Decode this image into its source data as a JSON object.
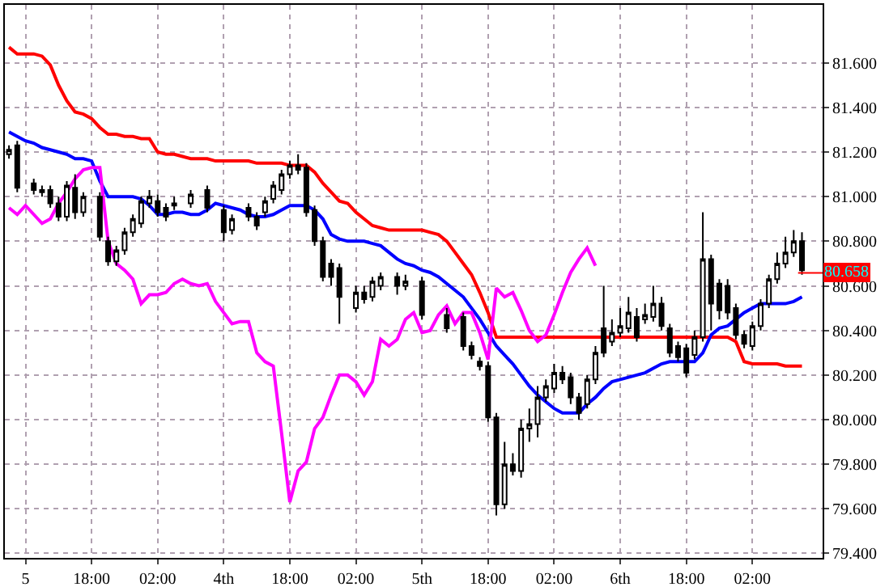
{
  "chart_data": {
    "type": "candlestick",
    "categories": [
      null,
      null,
      "5",
      null,
      null,
      null,
      null,
      null,
      null,
      null,
      "18:00",
      null,
      null,
      null,
      null,
      null,
      null,
      null,
      "02:00",
      null,
      null,
      null,
      null,
      null,
      null,
      null,
      "4th",
      null,
      null,
      null,
      null,
      null,
      null,
      null,
      "18:00",
      null,
      null,
      null,
      null,
      null,
      null,
      null,
      "02:00",
      null,
      null,
      null,
      null,
      null,
      null,
      null,
      "5th",
      null,
      null,
      null,
      null,
      null,
      null,
      null,
      "18:00",
      null,
      null,
      null,
      null,
      null,
      null,
      null,
      "02:00",
      null,
      null,
      null,
      null,
      null,
      null,
      null,
      "6th",
      null,
      null,
      null,
      null,
      null,
      null,
      null,
      "18:00",
      null,
      null,
      null,
      null,
      null,
      null,
      null,
      "02:00",
      null,
      null,
      null,
      null,
      null,
      null
    ],
    "ohlc": [
      [
        81.19,
        81.23,
        81.17,
        81.21
      ],
      [
        81.23,
        81.25,
        81.02,
        81.04
      ],
      null,
      [
        81.06,
        81.08,
        81.01,
        81.03
      ],
      [
        81.03,
        81.05,
        81.0,
        81.02
      ],
      [
        81.03,
        81.05,
        80.95,
        80.97
      ],
      [
        80.97,
        81.0,
        80.89,
        80.91
      ],
      [
        80.91,
        81.07,
        80.89,
        81.05
      ],
      [
        81.04,
        81.1,
        80.9,
        80.93
      ],
      [
        80.93,
        81.02,
        80.91,
        81.0
      ],
      null,
      [
        81.0,
        81.02,
        80.8,
        80.82
      ],
      [
        80.8,
        80.82,
        80.69,
        80.71
      ],
      [
        80.71,
        80.78,
        80.69,
        80.76
      ],
      [
        80.76,
        80.86,
        80.74,
        80.84
      ],
      [
        80.84,
        80.92,
        80.82,
        80.9
      ],
      [
        80.88,
        81.0,
        80.86,
        80.98
      ],
      [
        80.97,
        81.03,
        80.95,
        81.0
      ],
      [
        80.98,
        81.01,
        80.91,
        80.93
      ],
      [
        80.95,
        80.97,
        80.89,
        80.91
      ],
      [
        80.96,
        81.0,
        80.94,
        80.97
      ],
      null,
      [
        80.97,
        81.03,
        80.95,
        81.01
      ],
      null,
      [
        81.03,
        81.05,
        80.93,
        80.95
      ],
      null,
      [
        80.94,
        80.96,
        80.8,
        80.84
      ],
      [
        80.85,
        80.92,
        80.83,
        80.9
      ],
      null,
      [
        80.95,
        80.97,
        80.89,
        80.91
      ],
      [
        80.91,
        80.93,
        80.85,
        80.87
      ],
      [
        80.93,
        81.0,
        80.91,
        80.98
      ],
      [
        80.99,
        81.07,
        80.97,
        81.05
      ],
      [
        81.03,
        81.12,
        81.01,
        81.1
      ],
      [
        81.1,
        81.16,
        81.08,
        81.14
      ],
      [
        81.14,
        81.19,
        81.1,
        81.12
      ],
      [
        81.13,
        81.15,
        80.91,
        80.93
      ],
      [
        80.94,
        80.96,
        80.78,
        80.8
      ],
      [
        80.8,
        80.82,
        80.62,
        80.64
      ],
      [
        80.7,
        80.72,
        80.6,
        80.64
      ],
      [
        80.68,
        80.7,
        80.43,
        80.55
      ],
      null,
      [
        80.5,
        80.6,
        80.48,
        80.57
      ],
      [
        80.57,
        80.6,
        80.52,
        80.54
      ],
      [
        80.55,
        80.64,
        80.53,
        80.62
      ],
      [
        80.6,
        80.66,
        80.58,
        80.64
      ],
      null,
      [
        80.64,
        80.66,
        80.56,
        80.6
      ],
      [
        80.6,
        80.65,
        80.58,
        80.62
      ],
      null,
      [
        80.62,
        80.64,
        80.45,
        80.47
      ],
      null,
      null,
      [
        80.47,
        80.5,
        80.39,
        80.41
      ],
      null,
      [
        80.46,
        80.48,
        80.31,
        80.33
      ],
      [
        80.33,
        80.35,
        80.27,
        80.29
      ],
      [
        80.26,
        80.28,
        80.22,
        80.24
      ],
      [
        80.24,
        80.26,
        79.99,
        80.01
      ],
      [
        80.01,
        80.03,
        79.57,
        79.62
      ],
      [
        79.62,
        79.9,
        79.6,
        79.8
      ],
      [
        79.8,
        79.85,
        79.75,
        79.77
      ],
      [
        79.77,
        80.0,
        79.74,
        79.96
      ],
      [
        79.96,
        80.05,
        79.9,
        79.98
      ],
      [
        79.98,
        80.15,
        79.92,
        80.1
      ],
      [
        80.1,
        80.18,
        80.08,
        80.15
      ],
      [
        80.14,
        80.25,
        80.12,
        80.21
      ],
      [
        80.21,
        80.24,
        80.16,
        80.18
      ],
      [
        80.19,
        80.21,
        80.07,
        80.1
      ],
      [
        80.1,
        80.12,
        80.0,
        80.03
      ],
      [
        80.07,
        80.2,
        80.05,
        80.18
      ],
      [
        80.18,
        80.33,
        80.16,
        80.3
      ],
      [
        80.41,
        80.6,
        80.28,
        80.3
      ],
      [
        80.35,
        80.45,
        80.33,
        80.39
      ],
      [
        80.39,
        80.5,
        80.37,
        80.42
      ],
      [
        80.41,
        80.55,
        80.39,
        80.48
      ],
      [
        80.46,
        80.5,
        80.35,
        80.37
      ],
      [
        80.45,
        80.52,
        80.43,
        80.47
      ],
      [
        80.46,
        80.6,
        80.44,
        80.52
      ],
      [
        80.52,
        80.55,
        80.4,
        80.42
      ],
      [
        80.41,
        80.43,
        80.28,
        80.3
      ],
      [
        80.33,
        80.35,
        80.26,
        80.28
      ],
      [
        80.32,
        80.34,
        80.19,
        80.21
      ],
      [
        80.29,
        80.4,
        80.27,
        80.37
      ],
      [
        80.37,
        80.93,
        80.35,
        80.72
      ],
      [
        80.72,
        80.74,
        80.4,
        80.52
      ],
      [
        80.61,
        80.63,
        80.45,
        80.49
      ],
      [
        80.6,
        80.63,
        80.45,
        80.48
      ],
      [
        80.5,
        80.52,
        80.36,
        80.38
      ],
      [
        80.38,
        80.4,
        80.32,
        80.34
      ],
      [
        80.33,
        80.44,
        80.31,
        80.42
      ],
      [
        80.42,
        80.54,
        80.4,
        80.52
      ],
      [
        80.52,
        80.65,
        80.5,
        80.63
      ],
      [
        80.63,
        80.75,
        80.61,
        80.7
      ],
      [
        80.7,
        80.82,
        80.68,
        80.75
      ],
      [
        80.75,
        80.85,
        80.73,
        80.8
      ],
      [
        80.8,
        80.84,
        80.65,
        80.67
      ]
    ],
    "series": [
      {
        "type": "line",
        "color": "#ff0000",
        "values": [
          81.67,
          81.64,
          81.64,
          81.64,
          81.63,
          81.59,
          81.5,
          81.43,
          81.38,
          81.37,
          81.35,
          81.31,
          81.28,
          81.28,
          81.27,
          81.27,
          81.26,
          81.26,
          81.2,
          81.19,
          81.19,
          81.18,
          81.17,
          81.17,
          81.17,
          81.16,
          81.16,
          81.16,
          81.16,
          81.16,
          81.15,
          81.15,
          81.15,
          81.15,
          81.14,
          81.14,
          81.14,
          81.11,
          81.06,
          81.02,
          80.98,
          80.97,
          80.93,
          80.9,
          80.87,
          80.86,
          80.85,
          80.85,
          80.85,
          80.85,
          80.85,
          80.84,
          80.83,
          80.8,
          80.75,
          80.7,
          80.65,
          80.57,
          80.48,
          80.37,
          80.37,
          80.37,
          80.37,
          80.37,
          80.37,
          80.37,
          80.37,
          80.37,
          80.37,
          80.37,
          80.37,
          80.37,
          80.37,
          80.37,
          80.37,
          80.37,
          80.37,
          80.37,
          80.37,
          80.37,
          80.37,
          80.37,
          80.37,
          80.37,
          80.37,
          80.37,
          80.37,
          80.37,
          80.35,
          80.26,
          80.25,
          80.25,
          80.25,
          80.25,
          80.24,
          80.24,
          80.24
        ]
      },
      {
        "type": "line",
        "color": "#0000ff",
        "values": [
          81.29,
          81.27,
          81.25,
          81.24,
          81.22,
          81.21,
          81.2,
          81.19,
          81.17,
          81.17,
          81.16,
          81.07,
          81.0,
          81.0,
          81.0,
          81.0,
          80.99,
          80.96,
          80.92,
          80.92,
          80.93,
          80.93,
          80.92,
          80.92,
          80.94,
          80.97,
          80.96,
          80.95,
          80.94,
          80.92,
          80.91,
          80.91,
          80.92,
          80.94,
          80.96,
          80.96,
          80.96,
          80.94,
          80.9,
          80.83,
          80.81,
          80.8,
          80.8,
          80.8,
          80.79,
          80.78,
          80.75,
          80.72,
          80.7,
          80.69,
          80.67,
          80.66,
          80.64,
          80.61,
          80.58,
          80.55,
          80.5,
          80.45,
          80.39,
          80.33,
          80.29,
          80.25,
          80.2,
          80.15,
          80.11,
          80.08,
          80.05,
          80.03,
          80.03,
          80.03,
          80.07,
          80.1,
          80.14,
          80.17,
          80.18,
          80.19,
          80.2,
          80.21,
          80.23,
          80.25,
          80.26,
          80.26,
          80.26,
          80.26,
          80.3,
          80.38,
          80.41,
          80.42,
          80.45,
          80.48,
          80.5,
          80.52,
          80.52,
          80.52,
          80.52,
          80.53,
          80.55
        ]
      },
      {
        "type": "line",
        "color": "#ff00ff",
        "values": [
          80.95,
          80.92,
          80.96,
          80.92,
          80.88,
          80.9,
          80.97,
          81.02,
          81.08,
          81.12,
          81.13,
          81.13,
          80.8,
          80.7,
          80.67,
          80.63,
          80.52,
          80.56,
          80.56,
          80.57,
          80.61,
          80.63,
          80.61,
          80.6,
          80.61,
          80.53,
          80.48,
          80.43,
          80.44,
          80.44,
          80.3,
          80.26,
          80.24,
          79.94,
          79.63,
          79.77,
          79.81,
          79.96,
          80.01,
          80.11,
          80.2,
          80.2,
          80.17,
          80.11,
          80.17,
          80.36,
          80.33,
          80.36,
          80.45,
          80.48,
          80.39,
          80.4,
          80.47,
          80.51,
          80.43,
          80.48,
          80.48,
          80.39,
          80.27,
          80.59,
          80.55,
          80.57,
          80.49,
          80.4,
          80.35,
          80.38,
          80.47,
          80.57,
          80.66,
          80.72,
          80.77,
          80.69,
          null,
          null,
          null,
          null,
          null,
          null,
          null,
          null,
          null,
          null,
          null,
          null,
          null,
          null,
          null,
          null,
          null,
          null,
          null,
          null,
          null,
          null,
          null,
          null,
          null
        ]
      }
    ],
    "ylim": [
      79.38,
      81.86
    ],
    "yticks": [
      {
        "value": 79.4,
        "label": "79.400"
      },
      {
        "value": 79.6,
        "label": "79.600"
      },
      {
        "value": 79.8,
        "label": "79.800"
      },
      {
        "value": 80.0,
        "label": "80.000"
      },
      {
        "value": 80.2,
        "label": "80.200"
      },
      {
        "value": 80.4,
        "label": "80.400"
      },
      {
        "value": 80.6,
        "label": "80.600"
      },
      {
        "value": 80.8,
        "label": "80.800"
      },
      {
        "value": 81.0,
        "label": "81.000"
      },
      {
        "value": 81.2,
        "label": "81.200"
      },
      {
        "value": 81.4,
        "label": "81.400"
      },
      {
        "value": 81.6,
        "label": "81.600"
      }
    ],
    "ref_lines": [
      {
        "axis": "y",
        "value": 80.658,
        "label": "80.658",
        "color": "#ff0000"
      }
    ],
    "grid": true
  }
}
